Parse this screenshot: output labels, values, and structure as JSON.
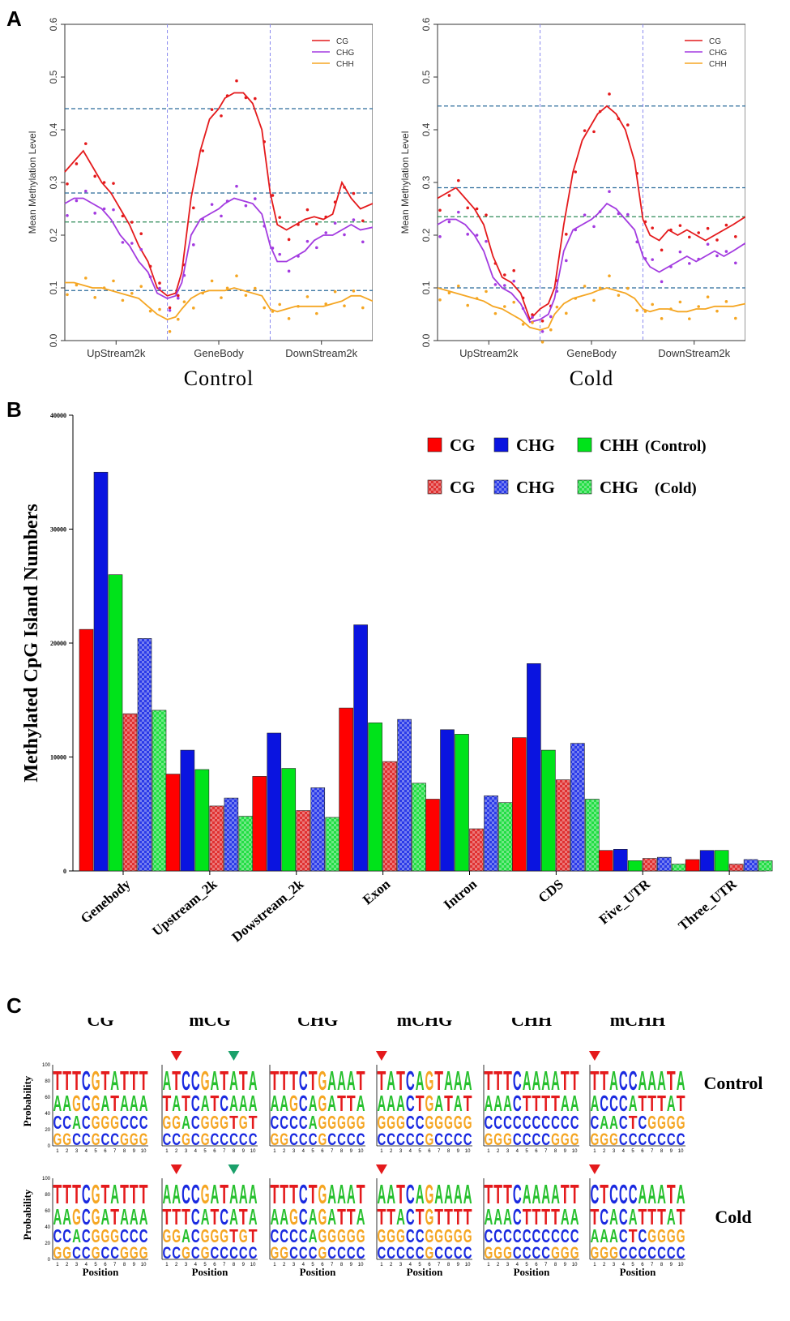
{
  "panel_labels": {
    "a": "A",
    "b": "B",
    "c": "C"
  },
  "chart_data": [
    {
      "id": "A-control",
      "type": "line",
      "title": "Control",
      "xlabel": "",
      "ylabel": "Mean Methylation Level",
      "ylim": [
        0,
        0.6
      ],
      "yticks": [
        0.0,
        0.1,
        0.2,
        0.3,
        0.4,
        0.5,
        0.6
      ],
      "ytick_labels": [
        "0.0",
        "0.1",
        "0.2",
        "0.3",
        "0.4",
        "0.5",
        "0.6"
      ],
      "xlim": [
        0,
        1
      ],
      "region_labels": [
        "UpStream2k",
        "GeneBody",
        "DownStream2k"
      ],
      "region_bounds": [
        0.333,
        0.667
      ],
      "hlines": [
        0.44,
        0.28,
        0.225,
        0.095
      ],
      "legend": [
        "CG",
        "CHG",
        "CHH"
      ],
      "series": [
        {
          "name": "CG",
          "color": "#e41a1c",
          "x": [
            0.0,
            0.03,
            0.06,
            0.09,
            0.12,
            0.15,
            0.18,
            0.21,
            0.24,
            0.27,
            0.3,
            0.333,
            0.36,
            0.38,
            0.41,
            0.44,
            0.47,
            0.5,
            0.52,
            0.55,
            0.58,
            0.61,
            0.64,
            0.667,
            0.69,
            0.72,
            0.75,
            0.78,
            0.81,
            0.84,
            0.87,
            0.9,
            0.93,
            0.96,
            1.0
          ],
          "y": [
            0.32,
            0.34,
            0.36,
            0.33,
            0.3,
            0.28,
            0.25,
            0.22,
            0.18,
            0.15,
            0.1,
            0.085,
            0.09,
            0.13,
            0.27,
            0.36,
            0.42,
            0.44,
            0.46,
            0.47,
            0.47,
            0.45,
            0.4,
            0.28,
            0.22,
            0.21,
            0.22,
            0.23,
            0.235,
            0.23,
            0.24,
            0.3,
            0.27,
            0.25,
            0.26
          ]
        },
        {
          "name": "CHG",
          "color": "#a33be0",
          "x": [
            0.0,
            0.03,
            0.06,
            0.09,
            0.12,
            0.15,
            0.18,
            0.21,
            0.24,
            0.27,
            0.3,
            0.333,
            0.36,
            0.38,
            0.41,
            0.44,
            0.47,
            0.5,
            0.52,
            0.55,
            0.58,
            0.61,
            0.64,
            0.667,
            0.69,
            0.72,
            0.75,
            0.78,
            0.81,
            0.84,
            0.87,
            0.9,
            0.93,
            0.96,
            1.0
          ],
          "y": [
            0.26,
            0.27,
            0.27,
            0.26,
            0.25,
            0.23,
            0.2,
            0.18,
            0.15,
            0.13,
            0.09,
            0.08,
            0.085,
            0.11,
            0.2,
            0.23,
            0.24,
            0.25,
            0.26,
            0.27,
            0.265,
            0.26,
            0.24,
            0.18,
            0.15,
            0.15,
            0.16,
            0.17,
            0.19,
            0.2,
            0.2,
            0.21,
            0.22,
            0.21,
            0.215
          ]
        },
        {
          "name": "CHH",
          "color": "#f5a623",
          "x": [
            0.0,
            0.03,
            0.06,
            0.09,
            0.12,
            0.15,
            0.18,
            0.21,
            0.24,
            0.27,
            0.3,
            0.333,
            0.36,
            0.38,
            0.41,
            0.44,
            0.47,
            0.5,
            0.52,
            0.55,
            0.58,
            0.61,
            0.64,
            0.667,
            0.69,
            0.72,
            0.75,
            0.78,
            0.81,
            0.84,
            0.87,
            0.9,
            0.93,
            0.96,
            1.0
          ],
          "y": [
            0.11,
            0.11,
            0.105,
            0.1,
            0.1,
            0.095,
            0.09,
            0.085,
            0.08,
            0.065,
            0.05,
            0.04,
            0.045,
            0.06,
            0.08,
            0.09,
            0.095,
            0.095,
            0.095,
            0.1,
            0.095,
            0.09,
            0.085,
            0.06,
            0.055,
            0.06,
            0.065,
            0.065,
            0.065,
            0.065,
            0.07,
            0.075,
            0.085,
            0.085,
            0.075
          ]
        }
      ]
    },
    {
      "id": "A-cold",
      "type": "line",
      "title": "Cold",
      "xlabel": "",
      "ylabel": "Mean Methylation Level",
      "ylim": [
        0,
        0.6
      ],
      "yticks": [
        0.0,
        0.1,
        0.2,
        0.3,
        0.4,
        0.5,
        0.6
      ],
      "ytick_labels": [
        "0.0",
        "0.1",
        "0.2",
        "0.3",
        "0.4",
        "0.5",
        "0.6"
      ],
      "xlim": [
        0,
        1
      ],
      "region_labels": [
        "UpStream2k",
        "GeneBody",
        "DownStream2k"
      ],
      "region_bounds": [
        0.333,
        0.667
      ],
      "hlines": [
        0.445,
        0.29,
        0.235,
        0.1
      ],
      "legend": [
        "CG",
        "CHG",
        "CHH"
      ],
      "series": [
        {
          "name": "CG",
          "color": "#e41a1c",
          "x": [
            0.0,
            0.03,
            0.06,
            0.09,
            0.12,
            0.15,
            0.18,
            0.21,
            0.24,
            0.27,
            0.3,
            0.333,
            0.36,
            0.38,
            0.41,
            0.44,
            0.47,
            0.5,
            0.52,
            0.55,
            0.58,
            0.61,
            0.64,
            0.667,
            0.69,
            0.72,
            0.75,
            0.78,
            0.81,
            0.84,
            0.87,
            0.9,
            0.93,
            0.96,
            1.0
          ],
          "y": [
            0.27,
            0.28,
            0.29,
            0.27,
            0.25,
            0.22,
            0.16,
            0.12,
            0.11,
            0.09,
            0.04,
            0.06,
            0.07,
            0.1,
            0.22,
            0.32,
            0.38,
            0.41,
            0.43,
            0.445,
            0.43,
            0.4,
            0.34,
            0.23,
            0.2,
            0.19,
            0.21,
            0.2,
            0.21,
            0.2,
            0.19,
            0.2,
            0.21,
            0.22,
            0.235
          ]
        },
        {
          "name": "CHG",
          "color": "#a33be0",
          "x": [
            0.0,
            0.03,
            0.06,
            0.09,
            0.12,
            0.15,
            0.18,
            0.21,
            0.24,
            0.27,
            0.3,
            0.333,
            0.36,
            0.38,
            0.41,
            0.44,
            0.47,
            0.5,
            0.52,
            0.55,
            0.58,
            0.61,
            0.64,
            0.667,
            0.69,
            0.72,
            0.75,
            0.78,
            0.81,
            0.84,
            0.87,
            0.9,
            0.93,
            0.96,
            1.0
          ],
          "y": [
            0.22,
            0.23,
            0.23,
            0.22,
            0.2,
            0.17,
            0.12,
            0.1,
            0.09,
            0.07,
            0.035,
            0.04,
            0.05,
            0.08,
            0.17,
            0.21,
            0.22,
            0.23,
            0.24,
            0.26,
            0.25,
            0.23,
            0.21,
            0.16,
            0.14,
            0.13,
            0.14,
            0.15,
            0.16,
            0.15,
            0.16,
            0.17,
            0.16,
            0.17,
            0.185
          ]
        },
        {
          "name": "CHH",
          "color": "#f5a623",
          "x": [
            0.0,
            0.03,
            0.06,
            0.09,
            0.12,
            0.15,
            0.18,
            0.21,
            0.24,
            0.27,
            0.3,
            0.333,
            0.36,
            0.38,
            0.41,
            0.44,
            0.47,
            0.5,
            0.52,
            0.55,
            0.58,
            0.61,
            0.64,
            0.667,
            0.69,
            0.72,
            0.75,
            0.78,
            0.81,
            0.84,
            0.87,
            0.9,
            0.93,
            0.96,
            1.0
          ],
          "y": [
            0.1,
            0.095,
            0.09,
            0.085,
            0.08,
            0.075,
            0.065,
            0.06,
            0.05,
            0.04,
            0.025,
            0.02,
            0.025,
            0.05,
            0.07,
            0.08,
            0.085,
            0.09,
            0.095,
            0.1,
            0.095,
            0.09,
            0.08,
            0.06,
            0.055,
            0.06,
            0.06,
            0.055,
            0.055,
            0.06,
            0.06,
            0.065,
            0.065,
            0.065,
            0.07
          ]
        }
      ]
    },
    {
      "id": "B",
      "type": "bar",
      "title": "",
      "xlabel": "",
      "ylabel": "Methylated CpG Island Numbers",
      "ylim": [
        0,
        40000
      ],
      "yticks": [
        0,
        10000,
        20000,
        30000,
        40000
      ],
      "ytick_labels": [
        "0",
        "10000",
        "20000",
        "30000",
        "40000"
      ],
      "categories": [
        "Genebody",
        "Upstream_2k",
        "Dowstream_2k",
        "Exon",
        "Intron",
        "CDS",
        "Five_UTR",
        "Three_UTR"
      ],
      "series": [
        {
          "name": "CG (Control)",
          "color": "#ff0000",
          "pattern": "solid",
          "values": [
            21200,
            8500,
            8300,
            14300,
            6300,
            11700,
            1800,
            1000
          ]
        },
        {
          "name": "CHG (Control)",
          "color": "#0a14e0",
          "pattern": "solid",
          "values": [
            35000,
            10600,
            12100,
            21600,
            12400,
            18200,
            1900,
            1800
          ]
        },
        {
          "name": "CHH (Control)",
          "color": "#00e31a",
          "pattern": "solid",
          "values": [
            26000,
            8900,
            9000,
            13000,
            12000,
            10600,
            900,
            1800
          ]
        },
        {
          "name": "CG (Cold)",
          "color": "#e03030",
          "pattern": "checker",
          "values": [
            13800,
            5700,
            5300,
            9600,
            3700,
            8000,
            1100,
            600
          ]
        },
        {
          "name": "CHG (Cold)",
          "color": "#2a3ae8",
          "pattern": "checker",
          "values": [
            20400,
            6400,
            7300,
            13300,
            6600,
            11200,
            1200,
            1000
          ]
        },
        {
          "name": "CHG (Cold)",
          "color": "#22dd44",
          "pattern": "checker",
          "values": [
            14100,
            4800,
            4700,
            7700,
            6000,
            6300,
            600,
            900
          ]
        }
      ],
      "legend_rows": [
        {
          "items": [
            "CG",
            "CHG",
            "CHH"
          ],
          "suffix": "(Control)"
        },
        {
          "items": [
            "CG",
            "CHG",
            "CHG"
          ],
          "suffix": "(Cold)"
        }
      ]
    },
    {
      "id": "C",
      "type": "sequence-logo",
      "columns": [
        "CG",
        "mCG",
        "CHG",
        "mCHG",
        "CHH",
        "mCHH"
      ],
      "rows": [
        "Control",
        "Cold"
      ],
      "ylabel": "Probability",
      "xlabel": "Position",
      "yticks": [
        "0",
        "20",
        "40",
        "60",
        "80",
        "100"
      ],
      "xticks": [
        "1",
        "2",
        "3",
        "4",
        "5",
        "6",
        "7",
        "8",
        "9",
        "10"
      ],
      "markers": {
        "mCG": [
          {
            "position": 2,
            "color": "#e41a1c"
          },
          {
            "position": 8,
            "color": "#1aa06a"
          }
        ],
        "mCHG": [
          {
            "position": 1,
            "color": "#e41a1c"
          }
        ],
        "mCHH": [
          {
            "position": 1,
            "color": "#e41a1c"
          }
        ]
      },
      "logos": {
        "Control": {
          "CG": [
            "TACG",
            "TACG",
            "TGAC",
            "CCCC",
            "GGGG",
            "TAGC",
            "ATGC",
            "TACG",
            "TACG",
            "TACG"
          ],
          "mCG": [
            "ATGC",
            "TAGC",
            "CTAG",
            "CCCC",
            "GAGG",
            "ATGC",
            "TCGC",
            "AATC",
            "TAGC",
            "AATC"
          ],
          "CHG": [
            "TACG",
            "TACG",
            "TGCC",
            "CCCC",
            "TAAC",
            "GGGG",
            "AAGC",
            "ATGC",
            "ATGC",
            "TAGC"
          ],
          "mCHG": [
            "TAGC",
            "AAGC",
            "TAGC",
            "CCCC",
            "ATCC",
            "GGGG",
            "TAGC",
            "ATGC",
            "AAGC",
            "ATGC"
          ],
          "CHH": [
            "TACG",
            "TACG",
            "TACG",
            "CCCC",
            "ATCC",
            "ATCC",
            "ATCC",
            "ATCG",
            "TACG",
            "TACG"
          ],
          "mCHH": [
            "TACG",
            "TCAG",
            "ACAG",
            "CCCC",
            "CATC",
            "ATCC",
            "ATGC",
            "ATGC",
            "TAGC",
            "ATGC"
          ]
        },
        "Cold": {
          "CG": [
            "TACG",
            "TACG",
            "TGAC",
            "CCCC",
            "GGGG",
            "TAGC",
            "ATGC",
            "TACG",
            "TACG",
            "TACG"
          ],
          "mCG": [
            "ATGC",
            "ATGC",
            "CTAG",
            "CCCC",
            "GAGG",
            "ATGC",
            "TCGC",
            "AATC",
            "ATGC",
            "AATC"
          ],
          "CHG": [
            "TACG",
            "TACG",
            "TGCC",
            "CCCC",
            "TAAC",
            "GGGG",
            "AAGC",
            "ATGC",
            "ATGC",
            "TAGC"
          ],
          "mCHG": [
            "ATGC",
            "ATGC",
            "TAGC",
            "CCCC",
            "ATCC",
            "GGGG",
            "ATGC",
            "ATGC",
            "ATGC",
            "ATGC"
          ],
          "CHH": [
            "TACG",
            "TACG",
            "TACG",
            "CCCC",
            "ATCC",
            "ATCC",
            "ATCC",
            "ATCG",
            "TACG",
            "TACG"
          ],
          "mCHH": [
            "CTAG",
            "TCAG",
            "CAAG",
            "CCCC",
            "CATC",
            "ATCC",
            "ATGC",
            "ATGC",
            "TAGC",
            "ATGC"
          ]
        }
      }
    }
  ]
}
